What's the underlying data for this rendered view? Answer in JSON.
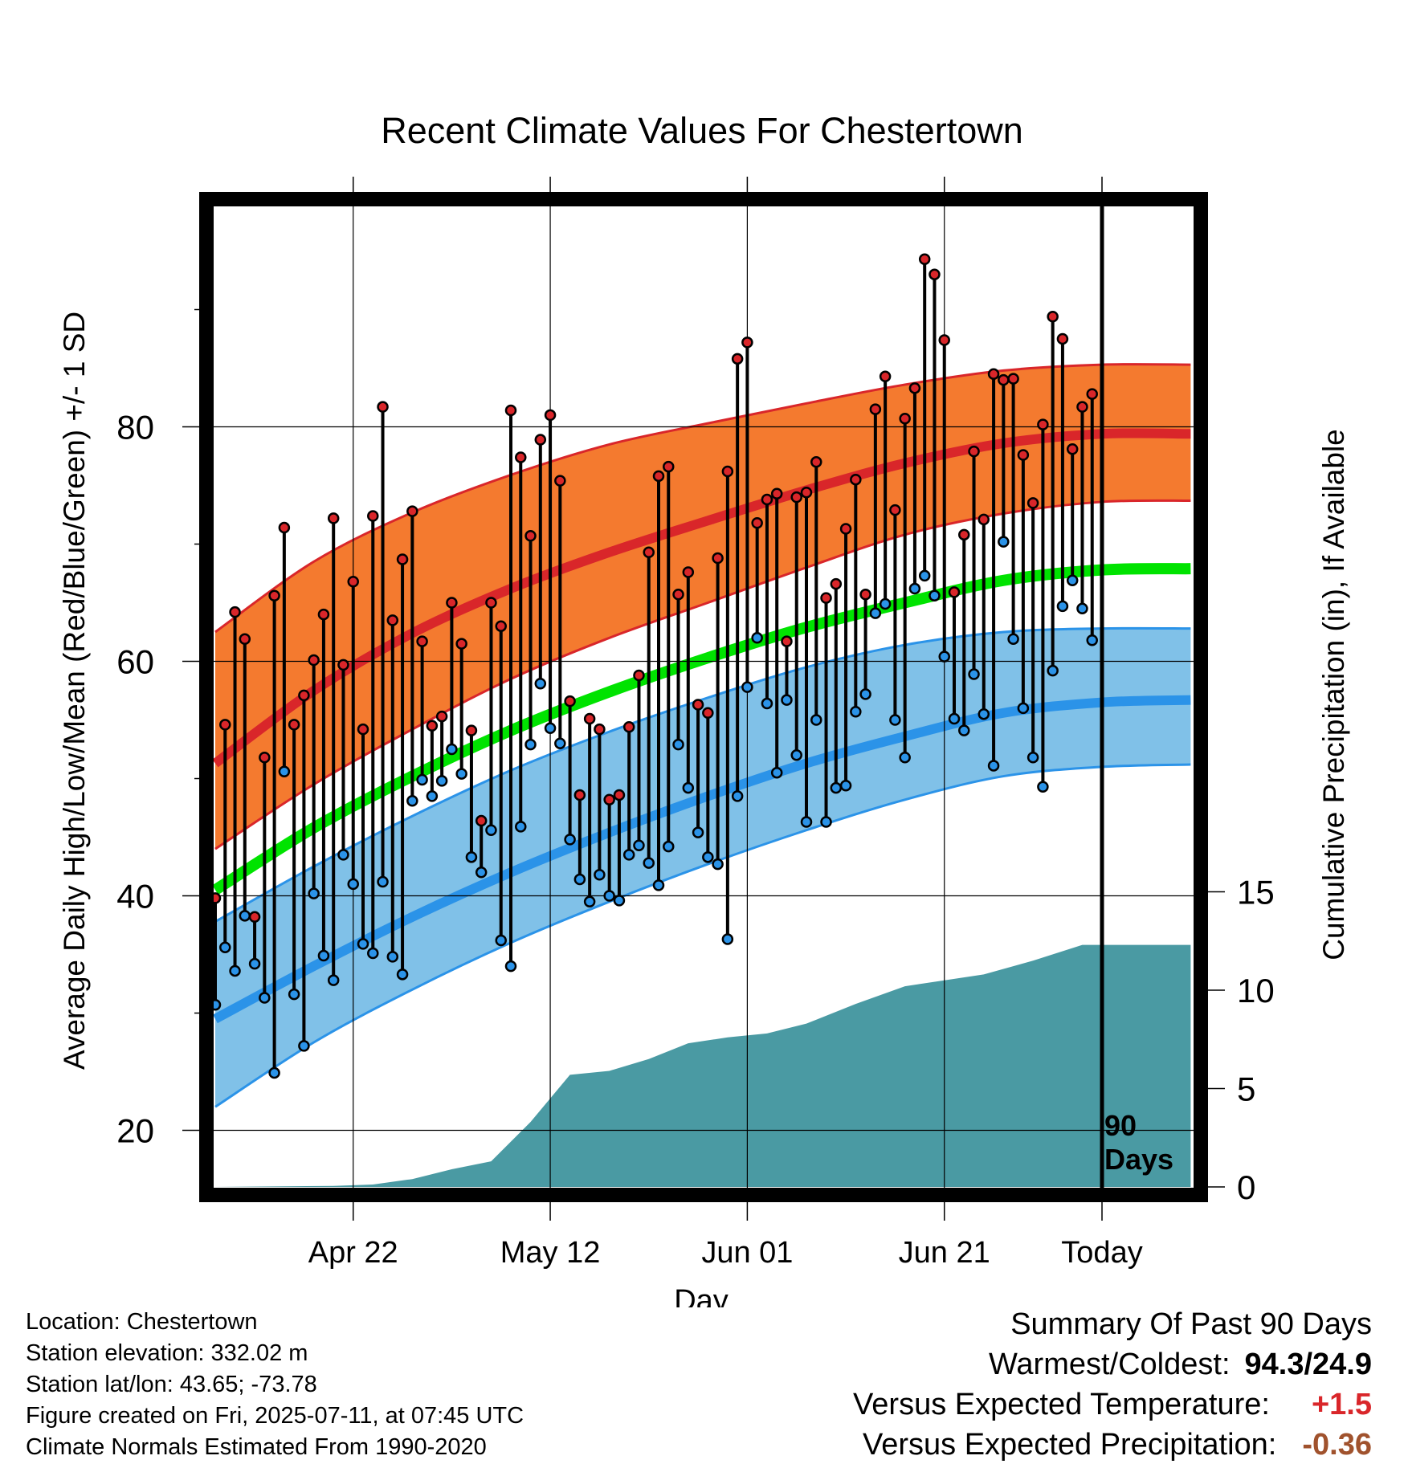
{
  "chart_data": {
    "type": "line",
    "title": "Recent Climate Values For Chestertown",
    "xlabel": "Day",
    "ylabel": "Average Daily High/Low/Mean (Red/Blue/Green) +/- 1 SD",
    "y2label": "Cumulative Precipitation (in), If Available",
    "x_ticks": [
      "Apr 22",
      "May 12",
      "Jun 01",
      "Jun 21",
      "Today"
    ],
    "y_ticks": [
      20,
      40,
      60,
      80
    ],
    "y2_ticks": [
      0,
      5,
      10,
      15
    ],
    "ylim": [
      15.5,
      99
    ],
    "y2lim": [
      0,
      27.5
    ],
    "xlim_days": [
      -90,
      9
    ],
    "annotation": [
      "90",
      "Days"
    ],
    "colors": {
      "high_band": "#f47a2f",
      "high_line": "#d9262a",
      "low_band": "#80c1e8",
      "low_line": "#2b93e8",
      "mean_line": "#00e300",
      "precip": "#4a9aa3",
      "high_point": "#d9262a",
      "low_point": "#2b93e8"
    },
    "normals": {
      "days": [
        -90,
        -80,
        -70,
        -60,
        -50,
        -40,
        -30,
        -20,
        -10,
        0,
        9
      ],
      "high_mean": [
        51.3,
        57.5,
        62.4,
        66.2,
        69.3,
        72.0,
        74.6,
        76.9,
        78.6,
        79.4,
        79.4
      ],
      "high_upper": [
        62.5,
        68.5,
        72.7,
        75.9,
        78.5,
        80.3,
        82.0,
        83.6,
        84.8,
        85.3,
        85.3
      ],
      "high_lower": [
        44.0,
        49.5,
        54.2,
        58.5,
        62.0,
        65.0,
        68.0,
        70.8,
        72.6,
        73.6,
        73.7
      ],
      "mean": [
        40.5,
        45.8,
        50.2,
        54.1,
        57.4,
        60.3,
        62.9,
        65.0,
        66.9,
        67.8,
        67.9
      ],
      "low_mean": [
        29.5,
        34.0,
        38.2,
        42.0,
        45.4,
        48.5,
        51.3,
        53.6,
        55.6,
        56.5,
        56.7
      ],
      "low_upper": [
        37.8,
        42.5,
        46.8,
        50.7,
        54.0,
        56.9,
        59.5,
        61.4,
        62.5,
        62.8,
        62.8
      ],
      "low_lower": [
        22.0,
        27.5,
        32.0,
        36.0,
        39.5,
        42.7,
        45.6,
        48.2,
        50.2,
        51.0,
        51.2
      ]
    },
    "series": [
      {
        "name": "High",
        "values": [
          39.8,
          54.6,
          64.2,
          61.9,
          38.2,
          51.8,
          65.6,
          71.4,
          54.6,
          57.1,
          60.1,
          64.0,
          72.2,
          59.7,
          66.8,
          54.2,
          72.4,
          81.7,
          63.5,
          68.7,
          72.8,
          61.7,
          54.5,
          55.3,
          65.0,
          61.5,
          54.1,
          46.4,
          65.0,
          63.0,
          81.4,
          77.4,
          70.7,
          78.9,
          81.0,
          75.4,
          56.6,
          48.6,
          55.1,
          54.2,
          48.2,
          48.6,
          54.4,
          58.8,
          69.3,
          75.8,
          76.6,
          65.7,
          67.6,
          56.3,
          55.6,
          68.8,
          76.2,
          85.8,
          87.2,
          71.8,
          73.8,
          74.3,
          61.7,
          74.0,
          74.4,
          77.0,
          65.4,
          66.6,
          71.3,
          75.5,
          65.7,
          81.5,
          84.3,
          72.9,
          80.7,
          83.3,
          94.3,
          93.0,
          87.4,
          65.9,
          70.8,
          77.9,
          72.1,
          84.5,
          84.0,
          84.1,
          77.6,
          73.5,
          80.2,
          89.4,
          87.5,
          78.1,
          81.7,
          82.8
        ]
      },
      {
        "name": "Low",
        "values": [
          30.7,
          35.6,
          33.6,
          38.3,
          34.2,
          31.3,
          24.9,
          50.6,
          31.6,
          27.2,
          40.2,
          34.9,
          32.8,
          43.5,
          41.0,
          35.9,
          35.1,
          41.2,
          34.8,
          33.3,
          48.1,
          49.9,
          48.5,
          49.8,
          52.5,
          50.4,
          43.3,
          42.0,
          45.6,
          36.2,
          34.0,
          45.9,
          52.9,
          58.1,
          54.3,
          53.0,
          44.8,
          41.4,
          39.5,
          41.8,
          40.0,
          39.6,
          43.5,
          44.3,
          42.8,
          40.9,
          44.2,
          52.9,
          49.2,
          45.4,
          43.3,
          42.7,
          36.3,
          48.5,
          57.8,
          62.0,
          56.4,
          50.5,
          56.7,
          52.0,
          46.3,
          55.0,
          46.3,
          49.2,
          49.4,
          55.7,
          57.2,
          64.1,
          64.9,
          55.0,
          51.8,
          66.2,
          67.3,
          65.6,
          60.4,
          55.1,
          54.1,
          58.9,
          55.5,
          51.1,
          70.2,
          61.9,
          56.0,
          51.8,
          49.3,
          59.2,
          64.7,
          66.9,
          64.5,
          61.8
        ]
      }
    ],
    "precip_steps": {
      "days": [
        -90,
        -78,
        -74,
        -70,
        -66,
        -62,
        -58,
        -54,
        -50,
        -46,
        -42,
        -38,
        -34,
        -30,
        -25,
        -20,
        -16,
        -12,
        -7,
        -2,
        0,
        9
      ],
      "values": [
        0,
        0.05,
        0.12,
        0.4,
        0.9,
        1.3,
        3.3,
        5.7,
        5.9,
        6.5,
        7.3,
        7.6,
        7.8,
        8.3,
        9.3,
        10.2,
        10.5,
        10.8,
        11.5,
        12.3,
        12.3,
        12.3
      ]
    }
  },
  "info": {
    "location": "Location: Chestertown",
    "elevation": "Station elevation: 332.02 m",
    "latlon": "Station lat/lon: 43.65; -73.78",
    "created": "Figure created on Fri, 2025-07-11, at 07:45 UTC",
    "normals": "Climate Normals Estimated From 1990-2020"
  },
  "summary": {
    "heading": "Summary Of Past 90 Days",
    "warm_cold_label": "Warmest/Coldest:",
    "warm_cold_value": "94.3/24.9",
    "temp_label": "Versus Expected Temperature:",
    "temp_value": "+1.5",
    "temp_color": "#d9262a",
    "precip_label": "Versus Expected Precipitation:",
    "precip_value": "-0.36",
    "precip_color": "#a0522d"
  }
}
